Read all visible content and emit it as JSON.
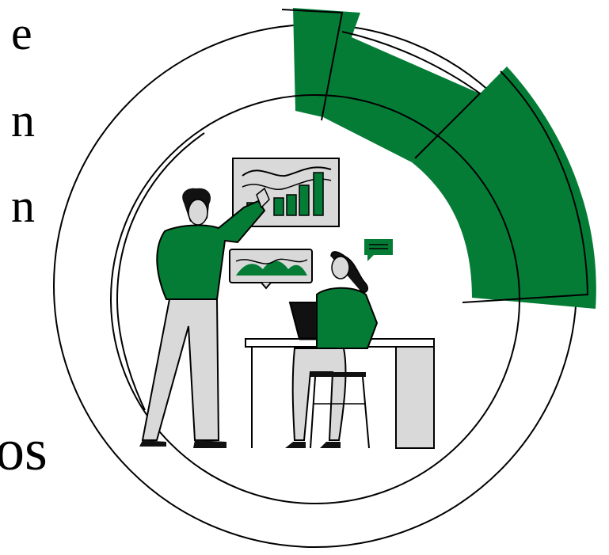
{
  "partial_text": {
    "line_1": "e",
    "line_2": "n",
    "line_3": "n",
    "line_4": "os"
  },
  "colors": {
    "accent_green": "#057c36",
    "outline": "#000000",
    "skin_gray": "#d9d9d9",
    "background": "#ffffff"
  },
  "illustration": {
    "subject": "two-people-analyzing-charts",
    "icons": [
      "presenter-figure",
      "seated-figure",
      "bar-chart-board",
      "wave-chart-bubble",
      "message-bubble-icon",
      "laptop-icon",
      "desk",
      "chair"
    ]
  }
}
